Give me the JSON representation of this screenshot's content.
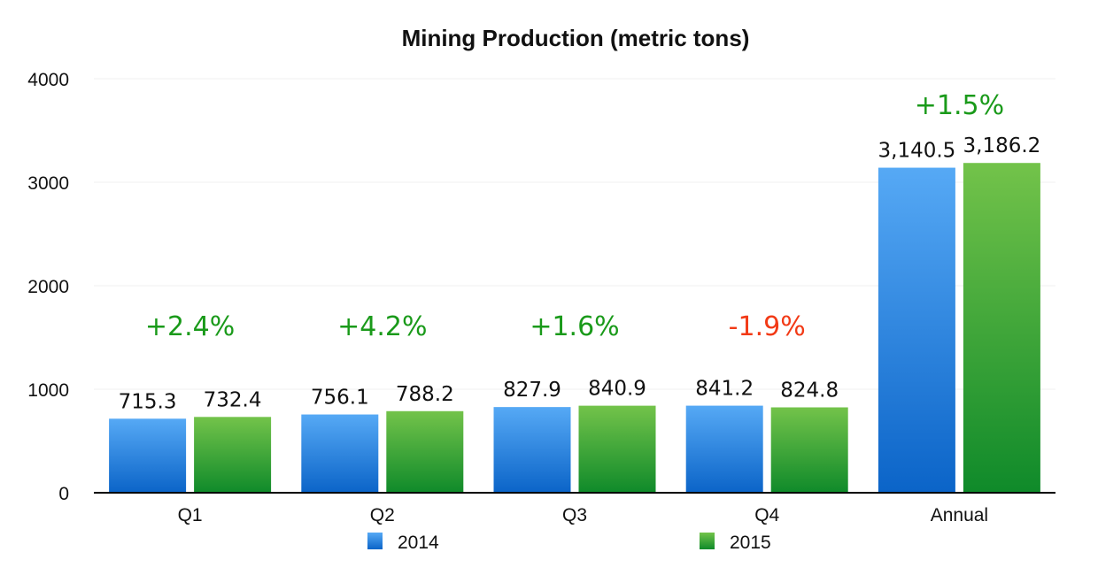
{
  "chart_data": {
    "type": "bar",
    "title": "Mining Production (metric tons)",
    "xlabel": "",
    "ylabel": "",
    "ylim": [
      0,
      4000
    ],
    "yticks": [
      0,
      1000,
      2000,
      3000,
      4000
    ],
    "categories": [
      "Q1",
      "Q2",
      "Q3",
      "Q4",
      "Annual"
    ],
    "series": [
      {
        "name": "2014",
        "values": [
          715.3,
          756.1,
          827.9,
          841.2,
          3140.5
        ],
        "labels": [
          "715.3",
          "756.1",
          "827.9",
          "841.2",
          "3,140.5"
        ],
        "color_top": "#56a9f5",
        "color_bottom": "#0b64c8"
      },
      {
        "name": "2015",
        "values": [
          732.4,
          788.2,
          840.9,
          824.8,
          3186.2
        ],
        "labels": [
          "732.4",
          "788.2",
          "840.9",
          "824.8",
          "3,186.2"
        ],
        "color_top": "#73c34a",
        "color_bottom": "#0f8a2a"
      }
    ],
    "annotations": [
      {
        "category": "Q1",
        "text": "+2.4%",
        "color": "#1a9a1a"
      },
      {
        "category": "Q2",
        "text": "+4.2%",
        "color": "#1a9a1a"
      },
      {
        "category": "Q3",
        "text": "+1.6%",
        "color": "#1a9a1a"
      },
      {
        "category": "Q4",
        "text": "-1.9%",
        "color": "#f23a16"
      },
      {
        "category": "Annual",
        "text": "+1.5%",
        "color": "#1a9a1a"
      }
    ],
    "grid": true,
    "legend": "bottom"
  }
}
